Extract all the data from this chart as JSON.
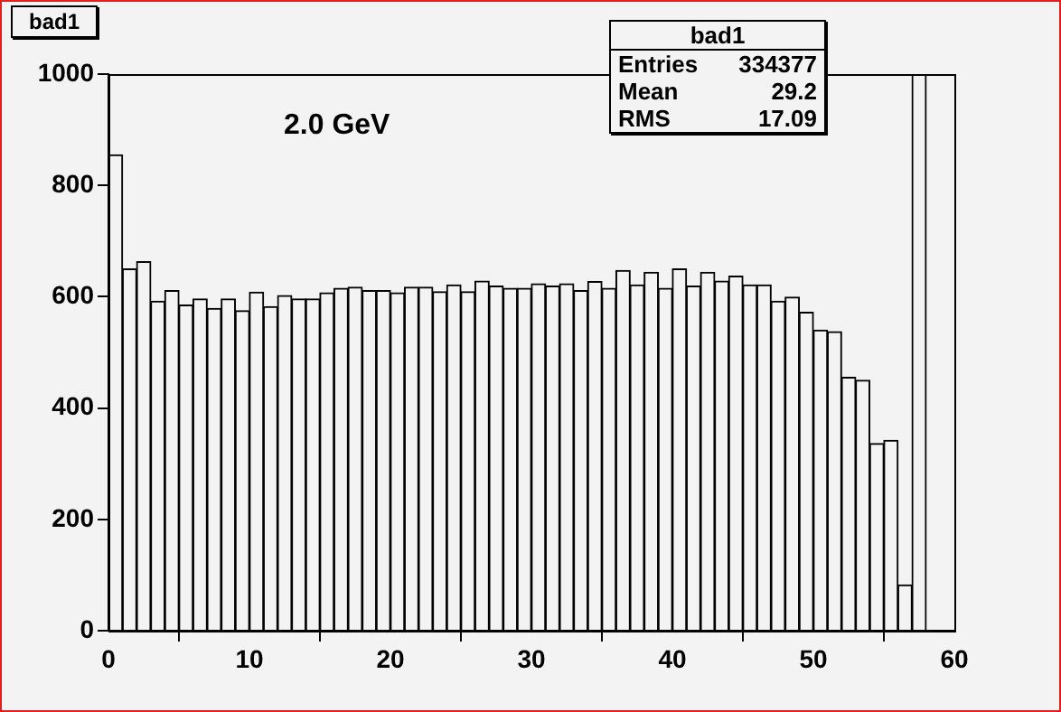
{
  "chart_data": {
    "type": "histogram",
    "title": "bad1",
    "annotations": [
      "2.0 GeV",
      "Entries 334377",
      "Mean 29.2",
      "RMS 17.09"
    ],
    "bins": [
      0,
      1,
      2,
      3,
      4,
      5,
      6,
      7,
      8,
      9,
      10,
      11,
      12,
      13,
      14,
      15,
      16,
      17,
      18,
      19,
      20,
      21,
      22,
      23,
      24,
      25,
      26,
      27,
      28,
      29,
      30,
      31,
      32,
      33,
      34,
      35,
      36,
      37,
      38,
      39,
      40,
      41,
      42,
      43,
      44,
      45,
      46,
      47,
      48,
      49,
      50,
      51,
      52,
      53,
      54,
      55,
      56,
      57,
      58,
      59,
      60
    ],
    "values": [
      855,
      650,
      663,
      592,
      611,
      585,
      596,
      579,
      596,
      575,
      608,
      582,
      602,
      596,
      596,
      607,
      615,
      617,
      611,
      611,
      607,
      617,
      617,
      609,
      621,
      609,
      628,
      619,
      615,
      615,
      623,
      619,
      623,
      611,
      627,
      615,
      647,
      621,
      644,
      615,
      650,
      619,
      644,
      628,
      637,
      621,
      621,
      592,
      599,
      572,
      540,
      537,
      455,
      450,
      336,
      342,
      82,
      1000,
      0,
      0
    ],
    "color": "#f3f3f3",
    "xlim": [
      0,
      60
    ],
    "xticks": [
      0,
      10,
      20,
      30,
      40,
      50,
      60
    ],
    "ylim": [
      0,
      1000
    ],
    "yticks": [
      0,
      200,
      400,
      600,
      800,
      1000
    ],
    "grid": false,
    "legend": false
  }
}
